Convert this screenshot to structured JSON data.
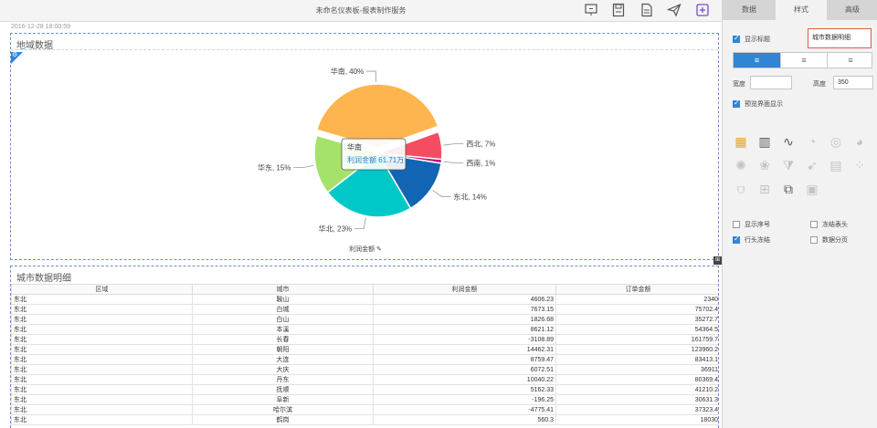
{
  "toolbar": {
    "title": "未命名仪表板-报表制作服务",
    "tools": [
      {
        "icon": "presentation-icon"
      },
      {
        "icon": "save-icon"
      },
      {
        "icon": "save-as-icon"
      },
      {
        "icon": "send-icon"
      },
      {
        "icon": "add-component-icon"
      }
    ]
  },
  "timestamp": "2016-12-28 18:00:59",
  "pie_panel": {
    "title": "地域数据",
    "axis_caption": "利润金额",
    "tooltip": {
      "region": "华南",
      "metric_text": "利润金额  61.71万"
    }
  },
  "chart_data": {
    "type": "pie",
    "title": "地域数据",
    "slices": [
      {
        "label": "华南",
        "value": 40,
        "display": "华南, 40%",
        "color": "#ffb54f"
      },
      {
        "label": "西北",
        "value": 7,
        "display": "西北, 7%",
        "color": "#f44d62"
      },
      {
        "label": "西南",
        "value": 1,
        "display": "西南, 1%",
        "color": "#b5137f"
      },
      {
        "label": "东北",
        "value": 14,
        "display": "东北, 14%",
        "color": "#1165b3"
      },
      {
        "label": "华北",
        "value": 23,
        "display": "华北, 23%",
        "color": "#00c8c8"
      },
      {
        "label": "华东",
        "value": 15,
        "display": "华东, 15%",
        "color": "#a6e26b"
      }
    ],
    "exploded": "华南",
    "legend": "none"
  },
  "table_panel": {
    "title": "城市数据明细",
    "columns": [
      "区域",
      "城市",
      "利润金额",
      "订单金额"
    ],
    "rows": [
      [
        "东北",
        "鞍山",
        "4606.23",
        "2340"
      ],
      [
        "东北",
        "白城",
        "7673.15",
        "75702.4"
      ],
      [
        "东北",
        "白山",
        "1826.68",
        "35272.7"
      ],
      [
        "东北",
        "本溪",
        "8621.12",
        "54364.5"
      ],
      [
        "东北",
        "长春",
        "-3108.89",
        "161759.7"
      ],
      [
        "东北",
        "朝阳",
        "14462.31",
        "123960.2"
      ],
      [
        "东北",
        "大连",
        "8759.47",
        "83413.1"
      ],
      [
        "东北",
        "大庆",
        "6072.51",
        "36911"
      ],
      [
        "东北",
        "丹东",
        "10040.22",
        "80369.4"
      ],
      [
        "东北",
        "抚顺",
        "5162.33",
        "41210.2"
      ],
      [
        "东北",
        "阜新",
        "-196.25",
        "30631.3"
      ],
      [
        "东北",
        "哈尔滨",
        "-4775.41",
        "37323.4"
      ],
      [
        "东北",
        "鹤岗",
        "560.3",
        "18030"
      ]
    ]
  },
  "sidebar": {
    "tabs": [
      "数据",
      "样式",
      "高级"
    ],
    "show_title_label": "显示标题",
    "show_title_checked": true,
    "title_value": "城市数据明细",
    "align_options": [
      "≡",
      "≡",
      "≡"
    ],
    "width_label": "宽度",
    "width_value": "",
    "height_label": "高度",
    "height_value": "350",
    "preview_label": "预览界面显示",
    "preview_checked": true,
    "chart_icons": [
      "table-icon",
      "bar-chart-icon",
      "line-chart-icon",
      "gauge-icon",
      "ring-icon",
      "pie-chart-icon",
      "radar-icon",
      "rose-icon",
      "funnel-icon",
      "map-icon",
      "area-icon",
      "scatter-icon",
      "combo-icon",
      "stacked-icon",
      "flow-icon",
      "text-block-icon"
    ],
    "options": [
      {
        "label": "显示序号",
        "checked": false
      },
      {
        "label": "冻结表头",
        "checked": false
      },
      {
        "label": "行头冻结",
        "checked": true
      },
      {
        "label": "数据分页",
        "checked": false
      }
    ],
    "accent_color": "#2f86d6"
  }
}
